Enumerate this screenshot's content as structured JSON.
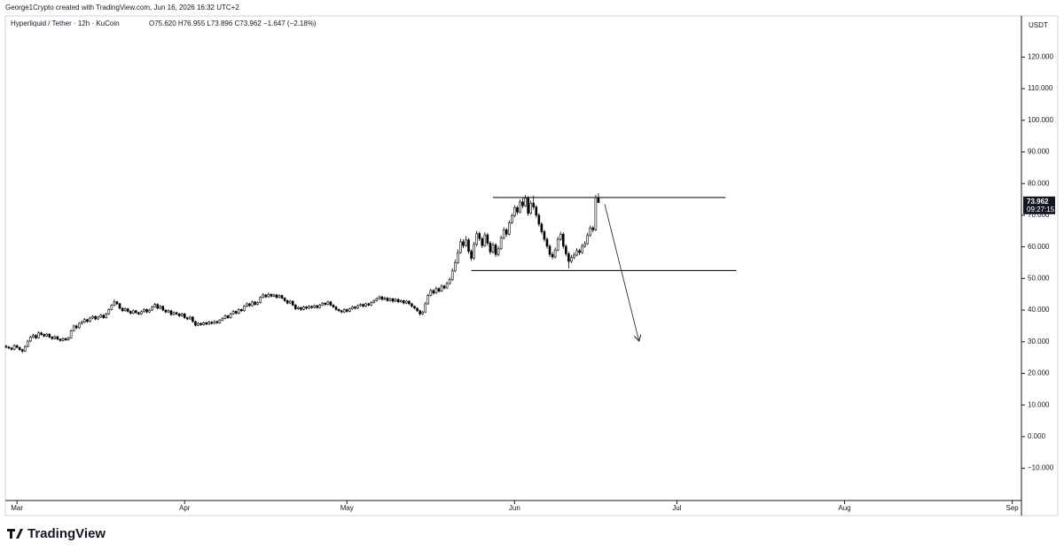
{
  "header": {
    "credit": "George1Crypto created with TradingView.com, Jun 16, 2026 16:32 UTC+2",
    "logo": "TradingView"
  },
  "chart_data": {
    "type": "candlestick",
    "symbol": "Hyperliquid / Tether · 12h · KuCoin",
    "ohlc_label": "O75.620 H76.955 L73.896 C73.962 −1.647 (−2.18%)",
    "currency": "USDT",
    "last_price": {
      "value": 73.962,
      "label": "73.962"
    },
    "countdown": "09:27:15",
    "up_color": "#ffffff",
    "down_color": "#000000",
    "wick_color": "#000000",
    "xlim": [
      -0.3,
      375.4
    ],
    "xticks": [
      {
        "value": 4,
        "label": "Mar"
      },
      {
        "value": 66,
        "label": "Apr"
      },
      {
        "value": 126,
        "label": "May"
      },
      {
        "value": 188,
        "label": "Jun"
      },
      {
        "value": 248,
        "label": "Jul"
      },
      {
        "value": 310,
        "label": "Aug"
      },
      {
        "value": 372,
        "label": "Sep"
      }
    ],
    "ylim": [
      -20.2,
      133.0
    ],
    "yticks": [
      {
        "value": -10,
        "label": "−10.000"
      },
      {
        "value": 0,
        "label": "0.000"
      },
      {
        "value": 10,
        "label": "10.000"
      },
      {
        "value": 20,
        "label": "20.000"
      },
      {
        "value": 30,
        "label": "30.000"
      },
      {
        "value": 40,
        "label": "40.000"
      },
      {
        "value": 50,
        "label": "50.000"
      },
      {
        "value": 60,
        "label": "60.000"
      },
      {
        "value": 70,
        "label": "70.000"
      },
      {
        "value": 80,
        "label": "80.000"
      },
      {
        "value": 90,
        "label": "90.000"
      },
      {
        "value": 100,
        "label": "100.000"
      },
      {
        "value": 110,
        "label": "110.000"
      },
      {
        "value": 120,
        "label": "120.000"
      }
    ],
    "lines": [
      {
        "x": [
          180,
          266
        ],
        "y": 75.6
      },
      {
        "x": [
          172,
          270
        ],
        "y": 52.5
      }
    ],
    "arrow": {
      "x": [
        221.3,
        234
      ],
      "y": [
        73.5,
        30.2
      ]
    },
    "candles": [
      [
        28.6,
        29.0,
        27.9,
        28.3
      ],
      [
        28.3,
        28.7,
        27.6,
        28.0
      ],
      [
        28.0,
        28.4,
        27.2,
        27.6
      ],
      [
        27.6,
        29.2,
        27.3,
        28.8
      ],
      [
        28.8,
        29.1,
        27.9,
        28.2
      ],
      [
        28.2,
        28.5,
        27.1,
        27.5
      ],
      [
        27.5,
        27.8,
        26.4,
        27.0
      ],
      [
        27.0,
        28.9,
        26.8,
        28.5
      ],
      [
        28.5,
        30.6,
        28.2,
        30.2
      ],
      [
        30.2,
        31.9,
        29.9,
        31.5
      ],
      [
        31.5,
        32.6,
        31.1,
        32.0
      ],
      [
        32.0,
        32.4,
        30.8,
        31.2
      ],
      [
        31.2,
        33.3,
        31.0,
        32.8
      ],
      [
        32.8,
        33.2,
        31.9,
        32.3
      ],
      [
        32.3,
        32.6,
        31.4,
        31.8
      ],
      [
        31.8,
        32.8,
        31.5,
        32.4
      ],
      [
        32.4,
        32.7,
        31.1,
        31.5
      ],
      [
        31.5,
        31.8,
        30.6,
        31.0
      ],
      [
        31.0,
        32.0,
        30.7,
        31.6
      ],
      [
        31.6,
        31.9,
        30.5,
        30.8
      ],
      [
        30.8,
        31.1,
        30.0,
        30.4
      ],
      [
        30.4,
        31.4,
        30.1,
        31.0
      ],
      [
        31.0,
        31.3,
        30.2,
        30.6
      ],
      [
        30.6,
        31.6,
        30.3,
        31.2
      ],
      [
        31.2,
        33.9,
        31.0,
        33.5
      ],
      [
        33.5,
        35.4,
        33.2,
        35.0
      ],
      [
        35.0,
        35.4,
        34.0,
        34.4
      ],
      [
        34.4,
        36.2,
        34.1,
        35.8
      ],
      [
        35.8,
        36.7,
        35.4,
        36.2
      ],
      [
        36.2,
        37.5,
        35.9,
        37.0
      ],
      [
        37.0,
        37.3,
        36.0,
        36.4
      ],
      [
        36.4,
        37.9,
        36.1,
        37.5
      ],
      [
        37.5,
        38.4,
        37.1,
        38.0
      ],
      [
        38.0,
        38.3,
        36.8,
        37.2
      ],
      [
        37.2,
        38.2,
        36.9,
        37.8
      ],
      [
        37.8,
        38.8,
        37.5,
        38.4
      ],
      [
        38.4,
        38.7,
        37.2,
        37.6
      ],
      [
        37.6,
        39.2,
        37.3,
        38.8
      ],
      [
        38.8,
        40.6,
        38.5,
        40.2
      ],
      [
        40.2,
        41.9,
        39.9,
        41.5
      ],
      [
        41.5,
        43.4,
        41.2,
        42.6
      ],
      [
        42.6,
        43.0,
        41.6,
        42.0
      ],
      [
        42.0,
        42.3,
        40.2,
        40.6
      ],
      [
        40.6,
        40.9,
        39.4,
        39.8
      ],
      [
        39.8,
        40.8,
        39.5,
        40.4
      ],
      [
        40.4,
        40.7,
        39.2,
        39.6
      ],
      [
        39.6,
        39.9,
        38.6,
        39.0
      ],
      [
        39.0,
        40.2,
        38.7,
        39.8
      ],
      [
        39.8,
        40.1,
        38.8,
        39.2
      ],
      [
        39.2,
        39.5,
        38.4,
        38.8
      ],
      [
        38.8,
        39.9,
        38.5,
        39.5
      ],
      [
        39.5,
        40.6,
        39.2,
        40.2
      ],
      [
        40.2,
        40.5,
        39.0,
        39.4
      ],
      [
        39.4,
        40.4,
        39.1,
        40.0
      ],
      [
        40.0,
        41.4,
        39.7,
        41.0
      ],
      [
        41.0,
        42.3,
        40.7,
        41.8
      ],
      [
        41.8,
        42.1,
        40.2,
        40.6
      ],
      [
        40.6,
        41.6,
        40.3,
        41.2
      ],
      [
        41.2,
        41.5,
        39.6,
        40.0
      ],
      [
        40.0,
        40.3,
        39.0,
        39.4
      ],
      [
        39.4,
        40.2,
        39.1,
        39.8
      ],
      [
        39.8,
        40.1,
        38.2,
        38.6
      ],
      [
        38.6,
        39.6,
        38.3,
        39.2
      ],
      [
        39.2,
        39.5,
        38.4,
        38.8
      ],
      [
        38.8,
        39.1,
        37.8,
        38.2
      ],
      [
        38.2,
        39.2,
        37.9,
        38.8
      ],
      [
        38.8,
        39.1,
        37.2,
        37.6
      ],
      [
        37.6,
        37.9,
        36.8,
        37.2
      ],
      [
        37.2,
        38.2,
        36.9,
        37.8
      ],
      [
        37.8,
        38.1,
        36.0,
        36.4
      ],
      [
        36.4,
        36.7,
        34.8,
        35.2
      ],
      [
        35.2,
        36.2,
        34.9,
        35.8
      ],
      [
        35.8,
        36.1,
        35.0,
        35.4
      ],
      [
        35.4,
        36.4,
        35.1,
        36.0
      ],
      [
        36.0,
        36.3,
        35.2,
        35.6
      ],
      [
        35.6,
        36.6,
        35.3,
        36.2
      ],
      [
        36.2,
        36.5,
        35.4,
        35.8
      ],
      [
        35.8,
        36.8,
        35.5,
        36.4
      ],
      [
        36.4,
        36.7,
        35.6,
        36.0
      ],
      [
        36.0,
        37.2,
        35.7,
        36.8
      ],
      [
        36.8,
        37.8,
        36.5,
        37.4
      ],
      [
        37.4,
        38.6,
        37.1,
        38.2
      ],
      [
        38.2,
        38.5,
        37.2,
        37.6
      ],
      [
        37.6,
        39.2,
        37.3,
        38.8
      ],
      [
        38.8,
        40.0,
        38.5,
        39.6
      ],
      [
        39.6,
        39.9,
        38.6,
        39.0
      ],
      [
        39.0,
        40.6,
        38.7,
        40.2
      ],
      [
        40.2,
        40.5,
        39.4,
        39.8
      ],
      [
        39.8,
        41.6,
        39.5,
        41.2
      ],
      [
        41.2,
        42.4,
        40.9,
        42.0
      ],
      [
        42.0,
        42.3,
        41.0,
        41.4
      ],
      [
        41.4,
        43.0,
        41.1,
        42.6
      ],
      [
        42.6,
        42.9,
        41.4,
        41.8
      ],
      [
        41.8,
        42.8,
        41.5,
        42.4
      ],
      [
        42.4,
        44.4,
        42.1,
        44.0
      ],
      [
        44.0,
        45.4,
        43.7,
        44.8
      ],
      [
        44.8,
        45.1,
        43.8,
        44.2
      ],
      [
        44.2,
        45.6,
        43.9,
        45.0
      ],
      [
        45.0,
        45.3,
        44.0,
        44.4
      ],
      [
        44.4,
        45.2,
        44.1,
        44.8
      ],
      [
        44.8,
        45.1,
        43.6,
        44.0
      ],
      [
        44.0,
        45.0,
        43.7,
        44.6
      ],
      [
        44.6,
        44.9,
        43.4,
        43.8
      ],
      [
        43.8,
        44.1,
        42.6,
        43.0
      ],
      [
        43.0,
        43.3,
        41.8,
        42.2
      ],
      [
        42.2,
        43.2,
        41.9,
        42.8
      ],
      [
        42.8,
        43.1,
        41.2,
        41.6
      ],
      [
        41.6,
        41.9,
        40.0,
        40.4
      ],
      [
        40.4,
        41.2,
        40.1,
        40.8
      ],
      [
        40.8,
        41.1,
        39.8,
        40.2
      ],
      [
        40.2,
        41.4,
        39.9,
        41.0
      ],
      [
        41.0,
        41.3,
        40.2,
        40.6
      ],
      [
        40.6,
        41.6,
        40.3,
        41.2
      ],
      [
        41.2,
        41.5,
        40.4,
        40.8
      ],
      [
        40.8,
        41.8,
        40.5,
        41.4
      ],
      [
        41.4,
        41.7,
        40.4,
        40.8
      ],
      [
        40.8,
        42.0,
        40.5,
        41.6
      ],
      [
        41.6,
        42.6,
        41.3,
        42.2
      ],
      [
        42.2,
        42.5,
        41.4,
        41.8
      ],
      [
        41.8,
        43.0,
        41.5,
        42.6
      ],
      [
        42.6,
        42.9,
        41.2,
        41.6
      ],
      [
        41.6,
        41.9,
        40.6,
        41.0
      ],
      [
        41.0,
        41.3,
        39.8,
        40.2
      ],
      [
        40.2,
        40.5,
        39.4,
        39.8
      ],
      [
        39.8,
        40.1,
        39.0,
        39.4
      ],
      [
        39.4,
        40.6,
        39.1,
        40.2
      ],
      [
        40.2,
        40.5,
        39.2,
        39.6
      ],
      [
        39.6,
        40.8,
        39.3,
        40.4
      ],
      [
        40.4,
        41.4,
        40.1,
        41.0
      ],
      [
        41.0,
        41.3,
        40.2,
        40.6
      ],
      [
        40.6,
        41.8,
        40.3,
        41.4
      ],
      [
        41.4,
        42.2,
        41.1,
        41.8
      ],
      [
        41.8,
        42.1,
        40.8,
        41.2
      ],
      [
        41.2,
        42.4,
        40.9,
        42.0
      ],
      [
        42.0,
        42.3,
        41.2,
        41.6
      ],
      [
        41.6,
        42.8,
        41.3,
        42.4
      ],
      [
        42.4,
        43.4,
        42.1,
        43.0
      ],
      [
        43.0,
        44.0,
        42.7,
        43.6
      ],
      [
        43.6,
        44.6,
        43.3,
        44.2
      ],
      [
        44.2,
        44.5,
        43.0,
        43.4
      ],
      [
        43.4,
        44.2,
        43.1,
        43.8
      ],
      [
        43.8,
        44.1,
        42.6,
        43.0
      ],
      [
        43.0,
        44.0,
        42.7,
        43.6
      ],
      [
        43.6,
        43.9,
        42.4,
        42.8
      ],
      [
        42.8,
        43.8,
        42.5,
        43.4
      ],
      [
        43.4,
        43.7,
        42.2,
        42.6
      ],
      [
        42.6,
        43.4,
        42.3,
        43.0
      ],
      [
        43.0,
        43.3,
        41.8,
        42.2
      ],
      [
        42.2,
        43.2,
        41.9,
        42.8
      ],
      [
        42.8,
        43.1,
        41.6,
        42.0
      ],
      [
        42.0,
        42.3,
        40.8,
        41.2
      ],
      [
        41.2,
        41.5,
        40.2,
        40.6
      ],
      [
        40.6,
        40.9,
        39.4,
        39.8
      ],
      [
        39.8,
        40.1,
        38.2,
        38.8
      ],
      [
        38.8,
        39.8,
        38.4,
        39.4
      ],
      [
        39.4,
        42.6,
        39.1,
        42.0
      ],
      [
        42.0,
        45.2,
        41.7,
        44.6
      ],
      [
        44.6,
        46.8,
        44.3,
        46.2
      ],
      [
        46.2,
        46.6,
        44.8,
        45.4
      ],
      [
        45.4,
        47.4,
        45.1,
        46.8
      ],
      [
        46.8,
        47.2,
        45.5,
        46.0
      ],
      [
        46.0,
        48.2,
        45.7,
        47.6
      ],
      [
        47.6,
        48.0,
        46.5,
        47.0
      ],
      [
        47.0,
        49.0,
        46.7,
        48.4
      ],
      [
        48.4,
        50.4,
        48.0,
        49.6
      ],
      [
        49.6,
        53.2,
        49.2,
        52.4
      ],
      [
        52.4,
        56.0,
        52.0,
        55.0
      ],
      [
        55.0,
        59.2,
        54.6,
        58.2
      ],
      [
        58.2,
        62.6,
        57.8,
        61.6
      ],
      [
        61.6,
        62.4,
        59.6,
        60.4
      ],
      [
        60.4,
        63.4,
        60.0,
        62.2
      ],
      [
        62.2,
        62.8,
        57.8,
        58.6
      ],
      [
        58.6,
        59.2,
        55.6,
        56.4
      ],
      [
        56.4,
        61.6,
        55.9,
        60.8
      ],
      [
        60.8,
        65.0,
        60.2,
        64.2
      ],
      [
        64.2,
        64.8,
        61.8,
        62.6
      ],
      [
        62.6,
        63.2,
        59.6,
        60.4
      ],
      [
        60.4,
        64.6,
        60.0,
        63.8
      ],
      [
        63.8,
        64.4,
        60.4,
        61.2
      ],
      [
        61.2,
        61.8,
        57.6,
        58.4
      ],
      [
        58.4,
        61.4,
        57.9,
        60.6
      ],
      [
        60.6,
        61.2,
        56.8,
        57.6
      ],
      [
        57.6,
        60.2,
        57.0,
        59.4
      ],
      [
        59.4,
        63.6,
        59.0,
        62.8
      ],
      [
        62.8,
        66.2,
        62.3,
        65.4
      ],
      [
        65.4,
        66.0,
        63.2,
        64.0
      ],
      [
        64.0,
        68.4,
        63.6,
        67.6
      ],
      [
        67.6,
        70.6,
        67.2,
        69.8
      ],
      [
        69.8,
        73.2,
        69.3,
        72.4
      ],
      [
        72.4,
        73.0,
        70.2,
        71.0
      ],
      [
        71.0,
        75.0,
        70.6,
        74.2
      ],
      [
        74.2,
        75.6,
        72.2,
        73.0
      ],
      [
        73.0,
        76.4,
        72.6,
        75.4
      ],
      [
        75.4,
        76.0,
        69.8,
        70.6
      ],
      [
        70.6,
        74.6,
        70.2,
        73.8
      ],
      [
        73.8,
        76.2,
        71.8,
        72.6
      ],
      [
        72.6,
        73.2,
        69.2,
        70.0
      ],
      [
        70.0,
        70.6,
        66.4,
        67.2
      ],
      [
        67.2,
        67.8,
        64.0,
        64.8
      ],
      [
        64.8,
        65.4,
        61.6,
        62.4
      ],
      [
        62.4,
        63.0,
        59.4,
        60.2
      ],
      [
        60.2,
        60.8,
        56.8,
        57.6
      ],
      [
        57.6,
        58.4,
        56.0,
        56.8
      ],
      [
        56.8,
        59.8,
        56.3,
        59.0
      ],
      [
        59.0,
        63.2,
        58.6,
        62.4
      ],
      [
        62.4,
        64.8,
        61.9,
        64.0
      ],
      [
        64.0,
        64.6,
        59.4,
        60.2
      ],
      [
        60.2,
        60.8,
        57.0,
        57.8
      ],
      [
        57.8,
        58.4,
        53.2,
        55.4
      ],
      [
        55.4,
        57.4,
        54.9,
        56.6
      ],
      [
        56.6,
        58.2,
        56.1,
        57.4
      ],
      [
        57.4,
        59.6,
        57.0,
        58.8
      ],
      [
        58.8,
        59.4,
        57.4,
        58.2
      ],
      [
        58.2,
        61.0,
        57.8,
        60.2
      ],
      [
        60.2,
        61.8,
        59.7,
        61.0
      ],
      [
        61.0,
        64.4,
        60.6,
        63.6
      ],
      [
        63.6,
        66.8,
        63.2,
        66.0
      ],
      [
        66.0,
        66.6,
        64.6,
        65.4
      ],
      [
        65.4,
        76.4,
        65.0,
        75.62
      ],
      [
        75.62,
        76.955,
        73.896,
        73.962
      ]
    ]
  }
}
